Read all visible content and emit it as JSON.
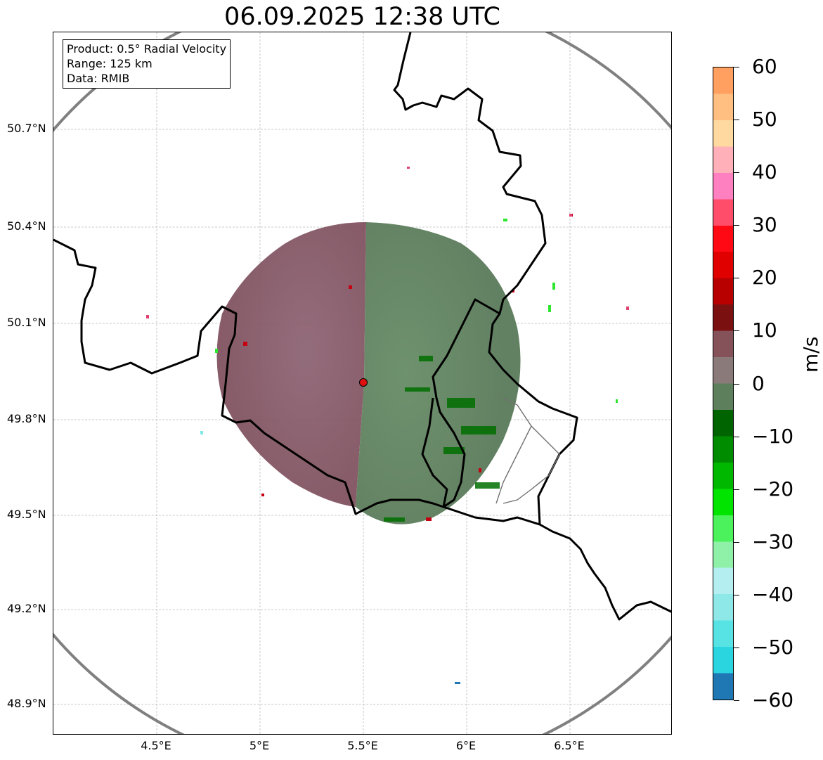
{
  "title": "06.09.2025 12:38 UTC",
  "info_box": {
    "product": "Product: 0.5° Radial Velocity",
    "range": "Range: 125 km",
    "data": "Data: RMIB"
  },
  "axes": {
    "lat_labels": [
      "50.7°N",
      "50.4°N",
      "50.1°N",
      "49.8°N",
      "49.5°N",
      "49.2°N",
      "48.9°N"
    ],
    "lon_labels": [
      "4.5°E",
      "5°E",
      "5.5°E",
      "6°E",
      "6.5°E"
    ]
  },
  "colorbar": {
    "unit": "m/s",
    "ticks": [
      "60",
      "50",
      "40",
      "30",
      "20",
      "10",
      "0",
      "−10",
      "−20",
      "−30",
      "−40",
      "−50",
      "−60"
    ],
    "range": [
      -60,
      60
    ],
    "colors": [
      "#1f77b4",
      "#2ad5e0",
      "#57e3e3",
      "#8ee8e8",
      "#b5eef0",
      "#8ff0a8",
      "#4cf25c",
      "#00e400",
      "#00b800",
      "#008c00",
      "#006400",
      "#5d7f5c",
      "#8a7a7a",
      "#86525a",
      "#7a1010",
      "#b80000",
      "#e00000",
      "#ff0a14",
      "#ff4d6a",
      "#ff80c0",
      "#ffb0b8",
      "#ffd9a0",
      "#ffbf80",
      "#ffa060"
    ]
  },
  "radar": {
    "site_label": "",
    "colors": {
      "inbound": "#5e7f5c",
      "outbound": "#8a5a68",
      "strong_in": "#007a00",
      "strong_out": "#c00010",
      "range_ring": "#808080"
    }
  }
}
